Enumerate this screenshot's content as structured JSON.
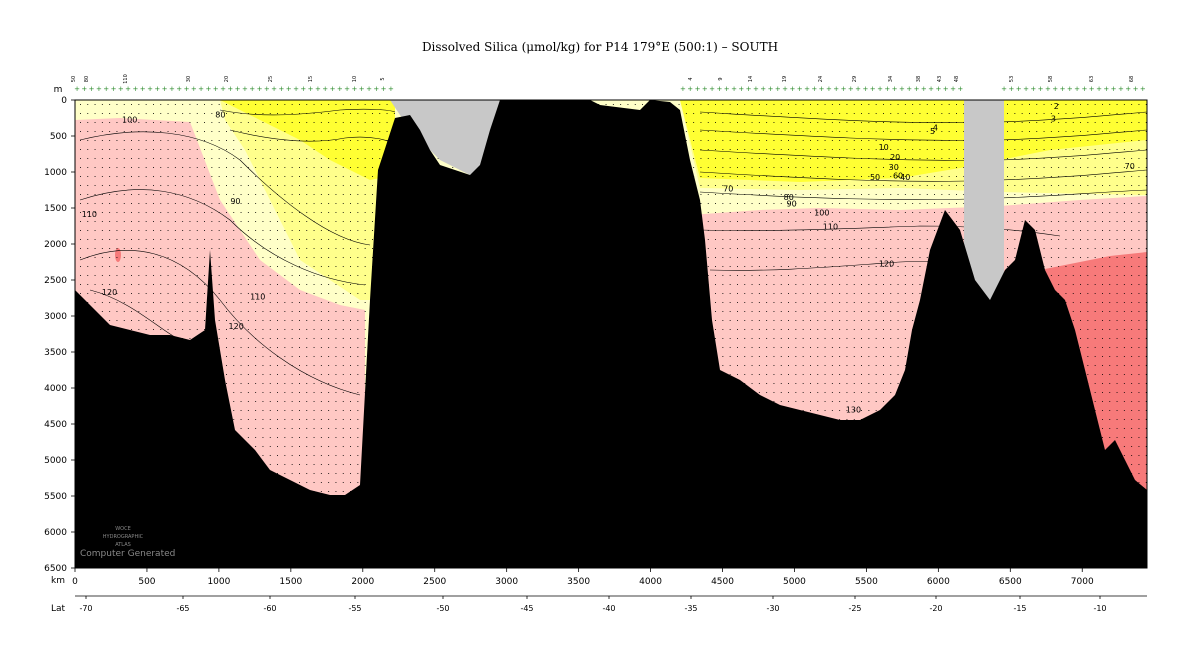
{
  "chart_data": {
    "type": "section",
    "title": "Dissolved Silica (μmol/kg) for P14 179°E (500:1) – SOUTH",
    "xlabel": "km",
    "ylabel": "m",
    "secondary_xlabel": "Lat",
    "xlim": [
      0,
      7450
    ],
    "ylim": [
      6500,
      0
    ],
    "x_ticks": [
      0,
      500,
      1000,
      1500,
      2000,
      2500,
      3000,
      3500,
      4000,
      4500,
      5000,
      5500,
      6000,
      6500,
      7000
    ],
    "y_ticks": [
      0,
      500,
      1000,
      1500,
      2000,
      2500,
      3000,
      3500,
      4000,
      4500,
      5000,
      5500,
      6000,
      6500
    ],
    "lat_ticks": [
      "-70",
      "-65",
      "-60",
      "-55",
      "-50",
      "-45",
      "-40",
      "-35",
      "-30",
      "-25",
      "-20",
      "-15",
      "-10"
    ],
    "station_labels": [
      "50",
      "80",
      "110",
      "30",
      "20",
      "25",
      "15",
      "10",
      "5",
      "4",
      "9",
      "14",
      "19",
      "24",
      "29",
      "34",
      "38",
      "43",
      "48",
      "53",
      "58",
      "63",
      "68"
    ],
    "contour_levels": [
      2,
      3,
      4,
      5,
      10,
      20,
      30,
      40,
      50,
      60,
      70,
      80,
      90,
      100,
      110,
      120,
      130
    ],
    "contour_labels": [
      {
        "text": "100",
        "km": 380,
        "m": 270
      },
      {
        "text": "80",
        "km": 1010,
        "m": 200
      },
      {
        "text": "90",
        "km": 1115,
        "m": 1400
      },
      {
        "text": "110",
        "km": 100,
        "m": 1580
      },
      {
        "text": "120",
        "km": 240,
        "m": 2670
      },
      {
        "text": "110",
        "km": 1270,
        "m": 2730
      },
      {
        "text": "120",
        "km": 1120,
        "m": 3140
      },
      {
        "text": "2",
        "km": 6820,
        "m": 80
      },
      {
        "text": "3",
        "km": 6800,
        "m": 260
      },
      {
        "text": "4",
        "km": 5980,
        "m": 380
      },
      {
        "text": "5",
        "km": 5960,
        "m": 430
      },
      {
        "text": "10",
        "km": 5620,
        "m": 650
      },
      {
        "text": "20",
        "km": 5700,
        "m": 790
      },
      {
        "text": "30",
        "km": 5690,
        "m": 930
      },
      {
        "text": "50",
        "km": 5560,
        "m": 1070
      },
      {
        "text": "60",
        "km": 5720,
        "m": 1050
      },
      {
        "text": "40",
        "km": 5770,
        "m": 1070
      },
      {
        "text": "70",
        "km": 4540,
        "m": 1230
      },
      {
        "text": "70",
        "km": 7330,
        "m": 920
      },
      {
        "text": "80",
        "km": 4960,
        "m": 1350
      },
      {
        "text": "90",
        "km": 4980,
        "m": 1440
      },
      {
        "text": "100",
        "km": 5190,
        "m": 1560
      },
      {
        "text": "110",
        "km": 5250,
        "m": 1760
      },
      {
        "text": "120",
        "km": 5640,
        "m": 2270
      },
      {
        "text": "130",
        "km": 5410,
        "m": 4300
      }
    ],
    "color_bands": [
      {
        "range": "< 10",
        "color": "#ffff33"
      },
      {
        "range": "10 – 60",
        "color": "#ffff8c"
      },
      {
        "range": "60 – 100",
        "color": "#ffffc8"
      },
      {
        "range": "100 – 120",
        "color": "#ffc8c4"
      },
      {
        "range": "> 120",
        "color": "#f77a7a"
      }
    ],
    "seafloor_color": "#000000",
    "no_data_color": "#c8c8c8",
    "grid": false
  },
  "labels": {
    "m_unit": "m",
    "km_unit": "km",
    "lat_unit": "Lat",
    "watermark_1": "WOCE",
    "watermark_2": "HYDROGRAPHIC",
    "watermark_3": "ATLAS",
    "computer_generated": "Computer Generated"
  }
}
